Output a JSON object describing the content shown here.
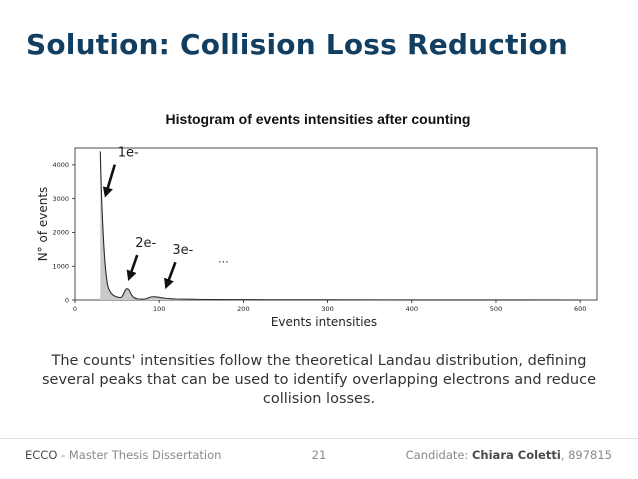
{
  "slide": {
    "title": "Solution: Collision Loss Reduction",
    "caption": "The counts' intensities follow the theoretical Landau distribution, defining several peaks that can be used to identify overlapping electrons and reduce collision losses.",
    "footer": {
      "left_strong": "ECCO",
      "left_rest": " - Master Thesis Dissertation",
      "page": "21",
      "right_prefix": "Candidate: ",
      "right_name": "Chiara Coletti",
      "right_suffix": ", 897815"
    }
  },
  "chart_data": {
    "type": "area",
    "title": "Histogram of events intensities after counting",
    "xlabel": "Events intensities",
    "ylabel": "N° of events",
    "xlim": [
      0,
      620
    ],
    "ylim": [
      0,
      4500
    ],
    "xticks": [
      0,
      100,
      200,
      300,
      400,
      500,
      600
    ],
    "yticks": [
      0,
      1000,
      2000,
      3000,
      4000
    ],
    "fill_start": 30,
    "series": [
      {
        "name": "events",
        "x": [
          30,
          32,
          35,
          38,
          41,
          45,
          50,
          55,
          58,
          61,
          64,
          67,
          70,
          75,
          80,
          85,
          90,
          95,
          100,
          105,
          110,
          120,
          140,
          160,
          200,
          250,
          300,
          400,
          500,
          600
        ],
        "y": [
          4400,
          2800,
          1300,
          550,
          280,
          150,
          90,
          80,
          200,
          330,
          300,
          160,
          70,
          30,
          25,
          40,
          90,
          95,
          80,
          60,
          45,
          30,
          20,
          15,
          10,
          6,
          5,
          3,
          2,
          1
        ]
      }
    ],
    "annotations": [
      {
        "label": "1e-",
        "x": 33,
        "y": 3000
      },
      {
        "label": "2e-",
        "x": 62,
        "y": 500
      },
      {
        "label": "3e-",
        "x": 105,
        "y": 230
      },
      {
        "label": "...",
        "x": 170,
        "y": 1200
      }
    ]
  }
}
